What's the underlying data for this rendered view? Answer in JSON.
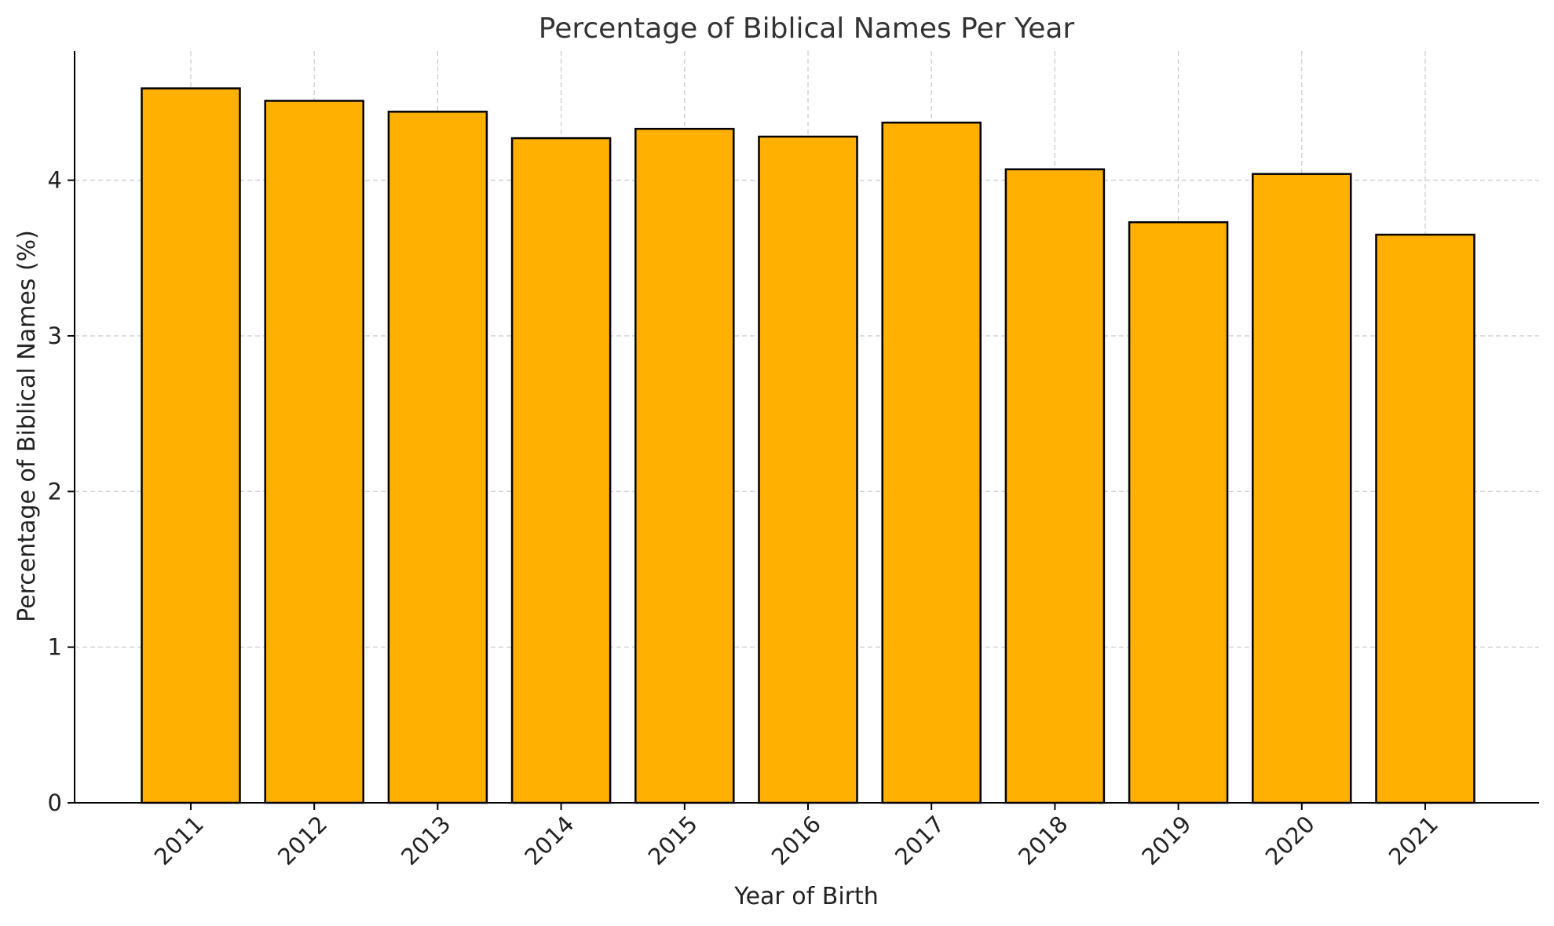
{
  "chart_data": {
    "type": "bar",
    "title": "Percentage of Biblical Names Per Year",
    "xlabel": "Year of Birth",
    "ylabel": "Percentage of Biblical Names (%)",
    "categories": [
      "2011",
      "2012",
      "2013",
      "2014",
      "2015",
      "2016",
      "2017",
      "2018",
      "2019",
      "2020",
      "2021"
    ],
    "values": [
      4.59,
      4.51,
      4.44,
      4.27,
      4.33,
      4.28,
      4.37,
      4.07,
      3.73,
      4.04,
      3.65
    ],
    "ylim": [
      0,
      4.83
    ],
    "yticks": [
      0,
      1,
      2,
      3,
      4
    ],
    "grid": true,
    "colors": {
      "bar_fill": "#FFB000",
      "bar_edge": "#000000"
    }
  }
}
